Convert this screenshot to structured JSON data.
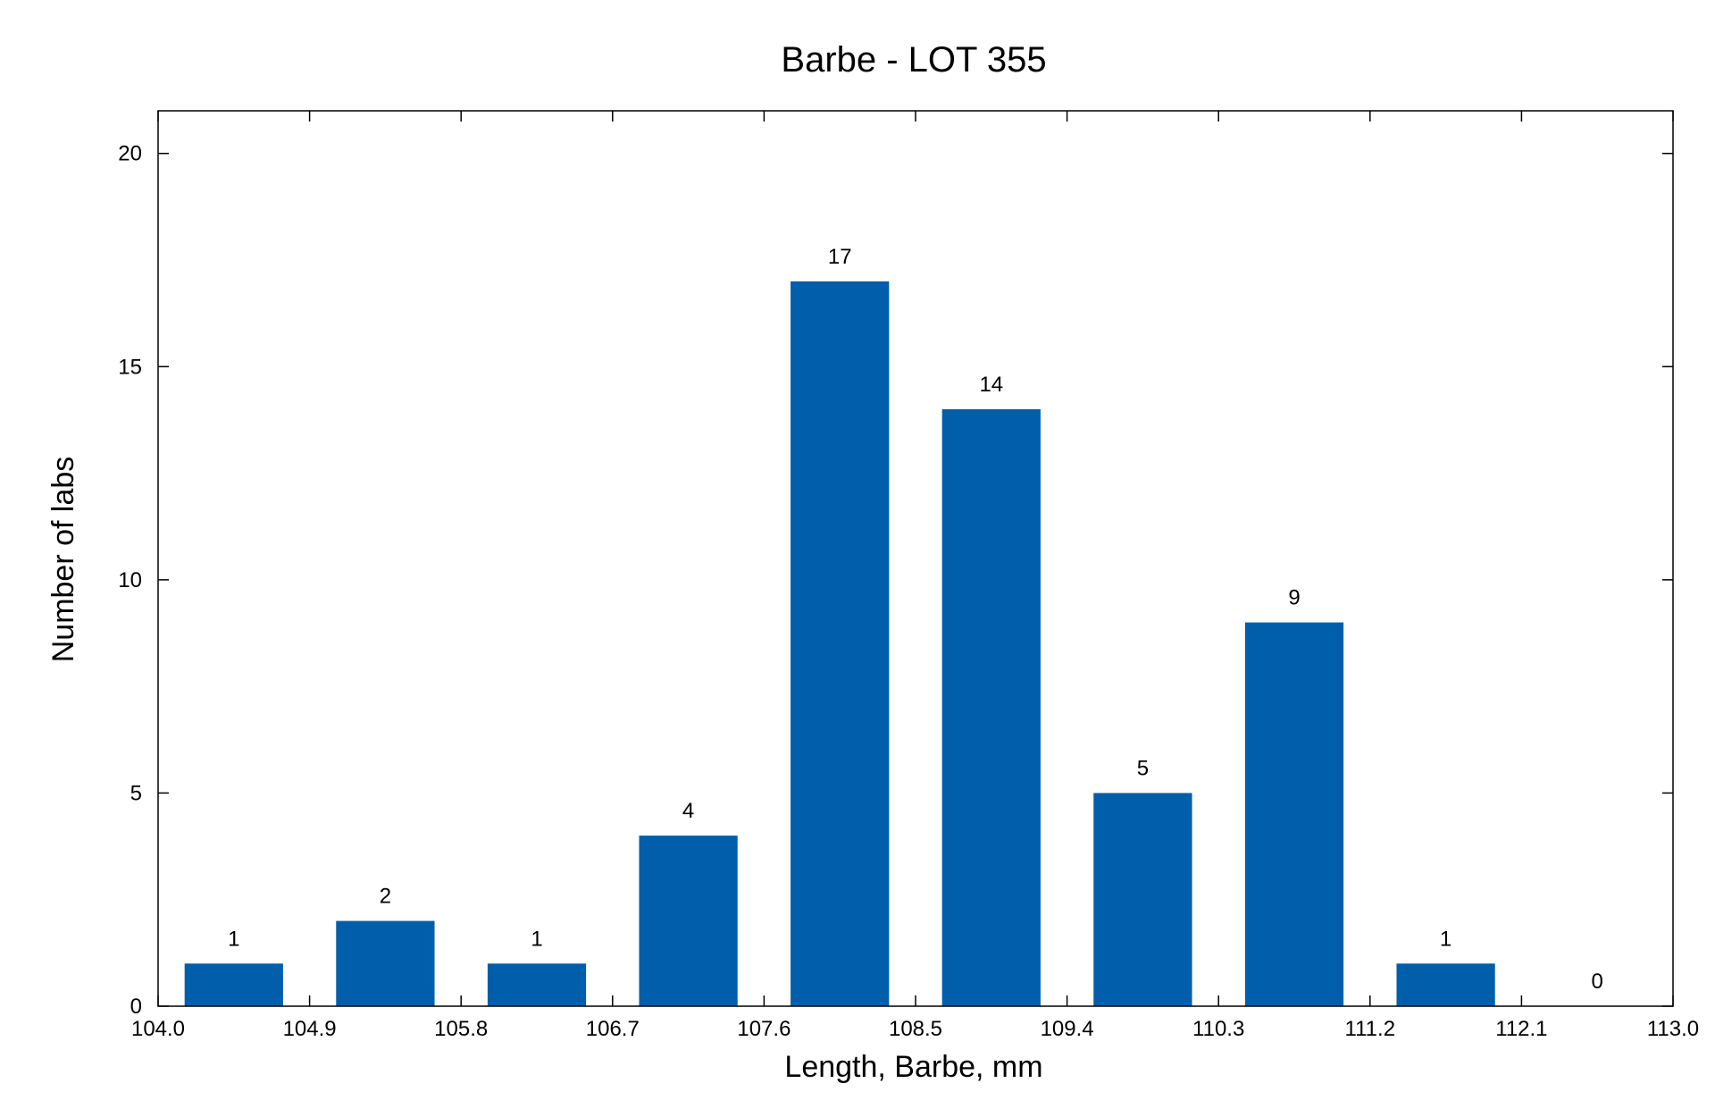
{
  "chart_data": {
    "type": "bar",
    "title": "Barbe - LOT 355",
    "xlabel": "Length, Barbe, mm",
    "ylabel": "Number of labs",
    "xlim": [
      104.0,
      113.0
    ],
    "ylim": [
      0,
      21
    ],
    "grid": false,
    "bar_color": "#005eaa",
    "x_ticks": [
      "104.0",
      "104.9",
      "105.8",
      "106.7",
      "107.6",
      "108.5",
      "109.4",
      "110.3",
      "111.2",
      "112.1",
      "113.0"
    ],
    "y_ticks": [
      "0",
      "5",
      "10",
      "15",
      "20"
    ],
    "bins": [
      {
        "from": 104.0,
        "to": 104.9,
        "value": 1
      },
      {
        "from": 104.9,
        "to": 105.8,
        "value": 2
      },
      {
        "from": 105.8,
        "to": 106.7,
        "value": 1
      },
      {
        "from": 106.7,
        "to": 107.6,
        "value": 4
      },
      {
        "from": 107.6,
        "to": 108.5,
        "value": 17
      },
      {
        "from": 108.5,
        "to": 109.4,
        "value": 14
      },
      {
        "from": 109.4,
        "to": 110.3,
        "value": 5
      },
      {
        "from": 110.3,
        "to": 111.2,
        "value": 9
      },
      {
        "from": 111.2,
        "to": 112.1,
        "value": 1
      },
      {
        "from": 112.1,
        "to": 113.0,
        "value": 0
      }
    ]
  }
}
